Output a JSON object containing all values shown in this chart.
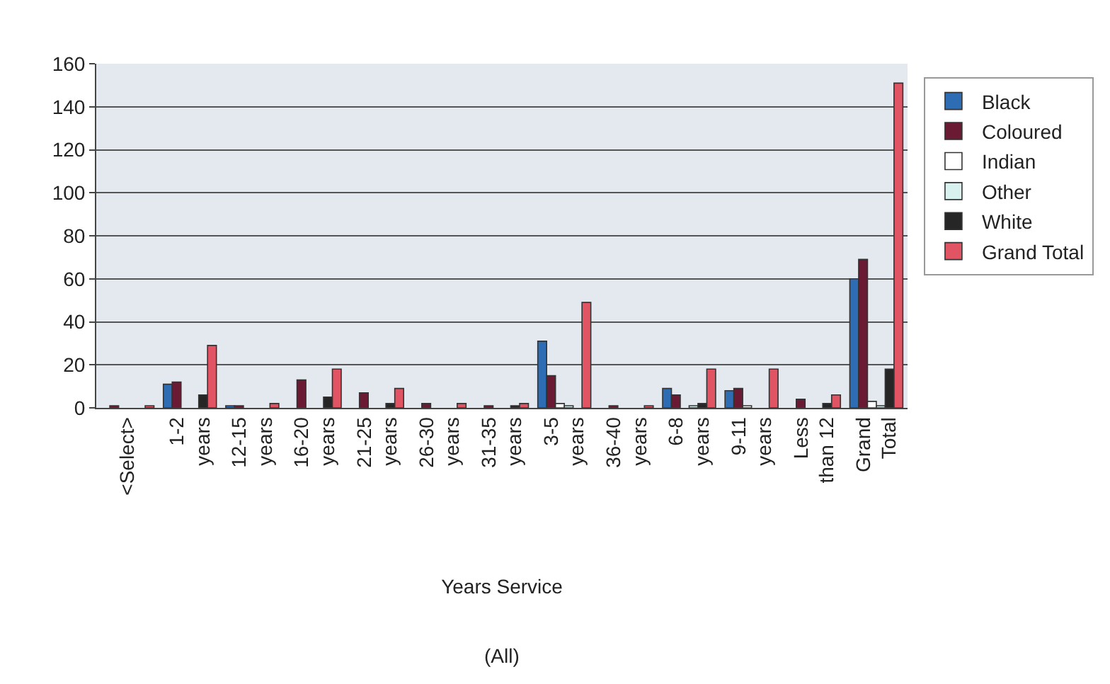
{
  "chart_data": {
    "type": "bar",
    "xlabel": "Years Service",
    "categories": [
      "<Select>",
      "1-2 years",
      "12-15 years",
      "16-20 years",
      "21-25 years",
      "26-30 years",
      "31-35 years",
      "3-5 years",
      "36-40 years",
      "6-8 years",
      "9-11 years",
      "Less than 12",
      "Grand Total"
    ],
    "series": [
      {
        "name": "Black",
        "color": "#2e6db4",
        "values": [
          null,
          11,
          1,
          null,
          null,
          null,
          null,
          31,
          null,
          9,
          8,
          null,
          60
        ]
      },
      {
        "name": "Coloured",
        "color": "#6b1a33",
        "values": [
          1,
          12,
          1,
          13,
          7,
          2,
          1,
          15,
          1,
          6,
          9,
          4,
          69
        ]
      },
      {
        "name": "Indian",
        "color": "#ffffff",
        "values": [
          null,
          null,
          null,
          null,
          null,
          null,
          null,
          2,
          null,
          null,
          1,
          null,
          3
        ]
      },
      {
        "name": "Other",
        "color": "#d8f0ee",
        "values": [
          null,
          null,
          null,
          null,
          null,
          null,
          null,
          1,
          null,
          1,
          null,
          null,
          1
        ]
      },
      {
        "name": "White",
        "color": "#262626",
        "values": [
          null,
          6,
          null,
          5,
          2,
          null,
          1,
          null,
          null,
          2,
          null,
          2,
          18
        ]
      },
      {
        "name": "Grand Total",
        "color": "#e05463",
        "values": [
          1,
          29,
          2,
          18,
          9,
          2,
          2,
          49,
          1,
          18,
          18,
          6,
          151
        ]
      }
    ],
    "ylim": [
      0,
      160
    ],
    "yticks": [
      0,
      20,
      40,
      60,
      80,
      100,
      120,
      140,
      160
    ],
    "grid": "y",
    "legend": "right",
    "annotations": [
      "(All)"
    ]
  }
}
